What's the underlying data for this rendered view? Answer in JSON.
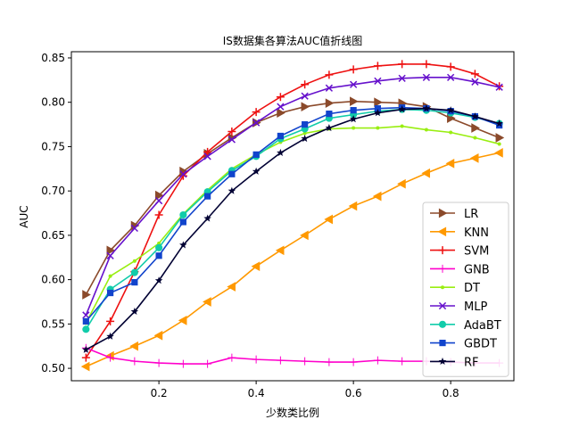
{
  "chart_data": {
    "type": "line",
    "title": "IS数据集各算法AUC值折线图",
    "xlabel": "少数类比例",
    "ylabel": "AUC",
    "xlim": [
      0.02,
      0.93
    ],
    "ylim": [
      0.486,
      0.857
    ],
    "xticks": [
      0.2,
      0.4,
      0.6,
      0.8
    ],
    "xtick_labels": [
      "0.2",
      "0.4",
      "0.6",
      "0.8"
    ],
    "yticks": [
      0.5,
      0.55,
      0.6,
      0.65,
      0.7,
      0.75,
      0.8,
      0.85
    ],
    "ytick_labels": [
      "0.50",
      "0.55",
      "0.60",
      "0.65",
      "0.70",
      "0.75",
      "0.80",
      "0.85"
    ],
    "grid": false,
    "legend_position": "lower-right",
    "x": [
      0.05,
      0.1,
      0.15,
      0.2,
      0.25,
      0.3,
      0.35,
      0.4,
      0.45,
      0.5,
      0.55,
      0.6,
      0.65,
      0.7,
      0.75,
      0.8,
      0.85,
      0.9
    ],
    "series": [
      {
        "name": "LR",
        "color": "#8b4a2b",
        "marker": "triangle-right",
        "values": [
          0.583,
          0.633,
          0.661,
          0.695,
          0.722,
          0.742,
          0.76,
          0.777,
          0.788,
          0.795,
          0.799,
          0.801,
          0.8,
          0.799,
          0.795,
          0.782,
          0.771,
          0.76
        ]
      },
      {
        "name": "KNN",
        "color": "#ff9900",
        "marker": "triangle-left",
        "values": [
          0.502,
          0.514,
          0.525,
          0.537,
          0.554,
          0.575,
          0.592,
          0.615,
          0.633,
          0.65,
          0.668,
          0.683,
          0.694,
          0.708,
          0.72,
          0.731,
          0.737,
          0.743
        ]
      },
      {
        "name": "SVM",
        "color": "#ee1111",
        "marker": "plus",
        "values": [
          0.512,
          0.553,
          0.609,
          0.673,
          0.717,
          0.744,
          0.767,
          0.789,
          0.806,
          0.82,
          0.831,
          0.837,
          0.841,
          0.843,
          0.843,
          0.84,
          0.832,
          0.818
        ]
      },
      {
        "name": "GNB",
        "color": "#ff00cc",
        "marker": "thin-plus",
        "values": [
          0.523,
          0.512,
          0.508,
          0.506,
          0.505,
          0.505,
          0.512,
          0.51,
          0.509,
          0.508,
          0.507,
          0.507,
          0.509,
          0.508,
          0.508,
          0.507,
          0.506,
          0.506
        ]
      },
      {
        "name": "DT",
        "color": "#99ee11",
        "marker": "point",
        "values": [
          0.551,
          0.604,
          0.621,
          0.641,
          0.674,
          0.701,
          0.725,
          0.741,
          0.755,
          0.765,
          0.77,
          0.771,
          0.771,
          0.773,
          0.769,
          0.766,
          0.76,
          0.753
        ]
      },
      {
        "name": "MLP",
        "color": "#6611cc",
        "marker": "x",
        "values": [
          0.56,
          0.627,
          0.658,
          0.689,
          0.719,
          0.739,
          0.758,
          0.777,
          0.795,
          0.807,
          0.816,
          0.82,
          0.824,
          0.827,
          0.828,
          0.828,
          0.823,
          0.817
        ]
      },
      {
        "name": "AdaBT",
        "color": "#11ccaa",
        "marker": "circle",
        "values": [
          0.544,
          0.589,
          0.608,
          0.636,
          0.673,
          0.699,
          0.723,
          0.739,
          0.759,
          0.77,
          0.782,
          0.786,
          0.79,
          0.792,
          0.791,
          0.788,
          0.783,
          0.776
        ]
      },
      {
        "name": "GBDT",
        "color": "#1144cc",
        "marker": "square",
        "values": [
          0.553,
          0.585,
          0.597,
          0.627,
          0.665,
          0.694,
          0.719,
          0.741,
          0.762,
          0.775,
          0.787,
          0.791,
          0.793,
          0.794,
          0.793,
          0.79,
          0.784,
          0.774
        ]
      },
      {
        "name": "RF",
        "color": "#000033",
        "marker": "star",
        "values": [
          0.521,
          0.536,
          0.564,
          0.599,
          0.639,
          0.669,
          0.7,
          0.722,
          0.743,
          0.759,
          0.771,
          0.781,
          0.788,
          0.792,
          0.793,
          0.791,
          0.784,
          0.776
        ]
      }
    ]
  }
}
